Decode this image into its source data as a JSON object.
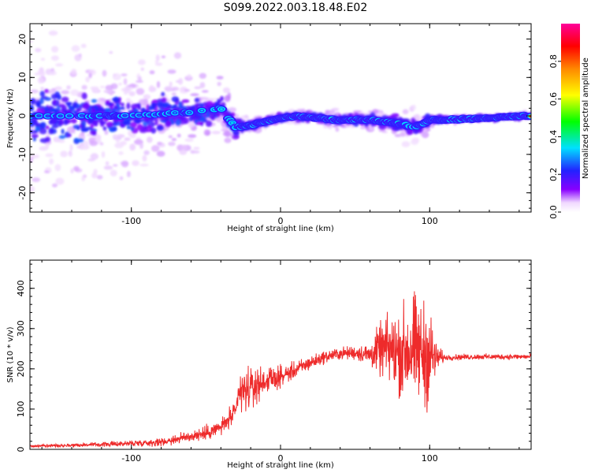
{
  "title": "S099.2022.003.18.48.E02",
  "colors": {
    "snr_line": "#ee2b2b",
    "axis": "#000000",
    "background": "#ffffff"
  },
  "chart_data": [
    {
      "type": "heatmap",
      "name": "spectrogram",
      "title": "",
      "xlabel": "Height of straight line (km)",
      "ylabel": "Frequency (Hz)",
      "xlim": [
        -168,
        168
      ],
      "ylim": [
        -25,
        24
      ],
      "xticks": [
        -100,
        0,
        100
      ],
      "yticks": [
        -20,
        -10,
        0,
        10,
        20
      ],
      "colorbar": {
        "label": "Normalized spectral amplitude",
        "range": [
          0,
          1
        ],
        "ticks": [
          0.0,
          0.2,
          0.4,
          0.6,
          0.8
        ]
      },
      "ridge": {
        "description_points": [
          {
            "x": -160,
            "freq": 0,
            "spread": 12,
            "amplitude": 0.25
          },
          {
            "x": -100,
            "freq": 0,
            "spread": 8,
            "amplitude": 0.25
          },
          {
            "x": -60,
            "freq": 1,
            "spread": 6,
            "amplitude": 0.3
          },
          {
            "x": -40,
            "freq": 2,
            "spread": 4,
            "amplitude": 0.35
          },
          {
            "x": -30,
            "freq": -3,
            "spread": 3,
            "amplitude": 0.35
          },
          {
            "x": -20,
            "freq": -2.5,
            "spread": 1.5,
            "amplitude": 0.75
          },
          {
            "x": -5,
            "freq": -1,
            "spread": 1.5,
            "amplitude": 0.7
          },
          {
            "x": 10,
            "freq": 0,
            "spread": 1.5,
            "amplitude": 0.7
          },
          {
            "x": 40,
            "freq": -1,
            "spread": 1.5,
            "amplitude": 0.7
          },
          {
            "x": 60,
            "freq": -1,
            "spread": 2,
            "amplitude": 0.65
          },
          {
            "x": 80,
            "freq": -2,
            "spread": 3,
            "amplitude": 0.55
          },
          {
            "x": 90,
            "freq": -3,
            "spread": 4,
            "amplitude": 0.3
          },
          {
            "x": 100,
            "freq": -1,
            "spread": 1.5,
            "amplitude": 0.6
          },
          {
            "x": 110,
            "freq": -1,
            "spread": 1,
            "amplitude": 0.95
          },
          {
            "x": 140,
            "freq": -0.5,
            "spread": 1,
            "amplitude": 0.8
          },
          {
            "x": 165,
            "freq": 0,
            "spread": 1,
            "amplitude": 0.95
          }
        ]
      }
    },
    {
      "type": "line",
      "name": "snr",
      "title": "",
      "xlabel": "Height of straight line (km)",
      "ylabel": "SNR (10 * v/v)",
      "xlim": [
        -168,
        168
      ],
      "ylim": [
        0,
        470
      ],
      "xticks": [
        -100,
        0,
        100
      ],
      "yticks": [
        0,
        100,
        200,
        300,
        400
      ],
      "envelope": {
        "x": [
          -168,
          -120,
          -80,
          -50,
          -40,
          -30,
          -28,
          -20,
          -10,
          0,
          20,
          30,
          40,
          50,
          60,
          65,
          70,
          80,
          88,
          95,
          100,
          104,
          110,
          130,
          168
        ],
        "mean": [
          8,
          12,
          18,
          40,
          55,
          90,
          140,
          150,
          170,
          180,
          215,
          230,
          238,
          240,
          235,
          245,
          250,
          240,
          250,
          240,
          230,
          228,
          228,
          230,
          230
        ],
        "noise": [
          5,
          8,
          14,
          25,
          30,
          40,
          80,
          70,
          45,
          35,
          25,
          22,
          22,
          25,
          40,
          80,
          110,
          150,
          200,
          180,
          190,
          60,
          10,
          10,
          10
        ]
      }
    }
  ]
}
